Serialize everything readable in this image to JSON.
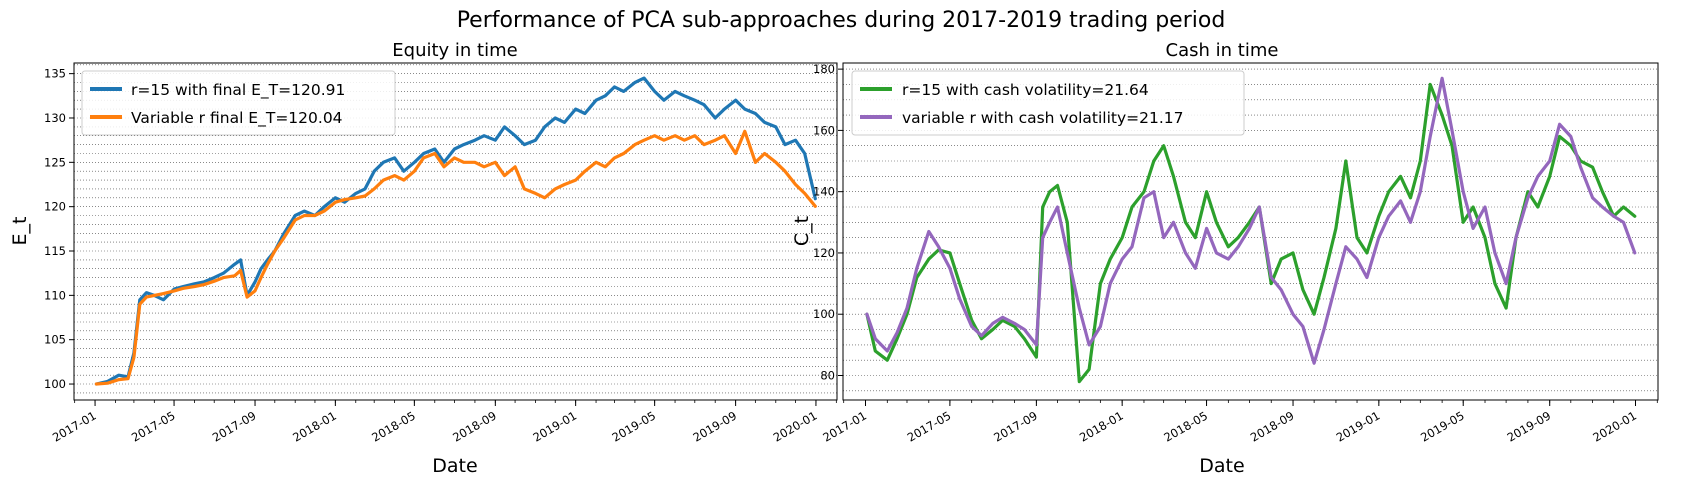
{
  "figure": {
    "title": "Performance of PCA sub-approaches during 2017-2019 trading period"
  },
  "chart_data": [
    {
      "type": "line",
      "title": "Equity in time",
      "xlabel": "Date",
      "ylabel": "E_t",
      "xlim": [
        "2016-11-30",
        "2020-02-02"
      ],
      "ylim": [
        98.2,
        136.2
      ],
      "x_ticks": [
        "2017-01",
        "2017-05",
        "2017-09",
        "2018-01",
        "2018-05",
        "2018-09",
        "2019-01",
        "2019-05",
        "2019-09",
        "2020-01"
      ],
      "y_ticks": [
        100,
        105,
        110,
        115,
        120,
        125,
        130,
        135
      ],
      "grid": "horizontal dotted, major and minor",
      "legend_position": "upper-left",
      "series": [
        {
          "name": "r=15 with final E_T=120.91",
          "color": "#1f77b4",
          "x": [
            "2017-01-03",
            "2017-01-20",
            "2017-02-06",
            "2017-02-20",
            "2017-03-01",
            "2017-03-10",
            "2017-03-20",
            "2017-04-01",
            "2017-04-15",
            "2017-05-01",
            "2017-05-15",
            "2017-06-01",
            "2017-06-15",
            "2017-07-01",
            "2017-07-15",
            "2017-08-01",
            "2017-08-10",
            "2017-08-20",
            "2017-09-01",
            "2017-09-10",
            "2017-09-20",
            "2017-10-01",
            "2017-10-15",
            "2017-11-01",
            "2017-11-15",
            "2017-12-01",
            "2017-12-15",
            "2018-01-01",
            "2018-01-15",
            "2018-02-01",
            "2018-02-15",
            "2018-03-01",
            "2018-03-15",
            "2018-04-01",
            "2018-04-15",
            "2018-05-01",
            "2018-05-15",
            "2018-06-01",
            "2018-06-15",
            "2018-07-01",
            "2018-07-15",
            "2018-08-01",
            "2018-08-15",
            "2018-09-01",
            "2018-09-15",
            "2018-10-01",
            "2018-10-15",
            "2018-11-01",
            "2018-11-15",
            "2018-12-01",
            "2018-12-15",
            "2019-01-01",
            "2019-01-15",
            "2019-02-01",
            "2019-02-15",
            "2019-03-01",
            "2019-03-15",
            "2019-04-01",
            "2019-04-15",
            "2019-05-01",
            "2019-05-15",
            "2019-06-01",
            "2019-06-15",
            "2019-07-01",
            "2019-07-15",
            "2019-08-01",
            "2019-08-15",
            "2019-09-01",
            "2019-09-15",
            "2019-10-01",
            "2019-10-15",
            "2019-11-01",
            "2019-11-15",
            "2019-12-01",
            "2019-12-15",
            "2019-12-31"
          ],
          "values": [
            100,
            100.3,
            101,
            100.8,
            103.5,
            109.5,
            110.3,
            110,
            109.5,
            110.7,
            111,
            111.3,
            111.5,
            112,
            112.5,
            113.5,
            114,
            110,
            111.5,
            113,
            114,
            115,
            117,
            119,
            119.5,
            119,
            120,
            121,
            120.5,
            121.5,
            122,
            124,
            125,
            125.5,
            124,
            125,
            126,
            126.5,
            125,
            126.5,
            127,
            127.5,
            128,
            127.5,
            129,
            128,
            127,
            127.5,
            129,
            130,
            129.5,
            131,
            130.5,
            132,
            132.5,
            133.5,
            133,
            134,
            134.5,
            133,
            132,
            133,
            132.5,
            132,
            131.5,
            130,
            131,
            132,
            131,
            130.5,
            129.5,
            129,
            127,
            127.5,
            126,
            120.9
          ]
        },
        {
          "name": "Variable r final E_T=120.04",
          "color": "#ff7f0e",
          "x": [
            "2017-01-03",
            "2017-01-20",
            "2017-02-06",
            "2017-02-20",
            "2017-03-01",
            "2017-03-10",
            "2017-03-20",
            "2017-04-01",
            "2017-04-15",
            "2017-05-01",
            "2017-05-15",
            "2017-06-01",
            "2017-06-15",
            "2017-07-01",
            "2017-07-15",
            "2017-08-01",
            "2017-08-10",
            "2017-08-20",
            "2017-09-01",
            "2017-09-10",
            "2017-09-20",
            "2017-10-01",
            "2017-10-15",
            "2017-11-01",
            "2017-11-15",
            "2017-12-01",
            "2017-12-15",
            "2018-01-01",
            "2018-01-15",
            "2018-02-01",
            "2018-02-15",
            "2018-03-01",
            "2018-03-15",
            "2018-04-01",
            "2018-04-15",
            "2018-05-01",
            "2018-05-15",
            "2018-06-01",
            "2018-06-15",
            "2018-07-01",
            "2018-07-15",
            "2018-08-01",
            "2018-08-15",
            "2018-09-01",
            "2018-09-15",
            "2018-10-01",
            "2018-10-15",
            "2018-11-01",
            "2018-11-15",
            "2018-12-01",
            "2018-12-15",
            "2019-01-01",
            "2019-01-15",
            "2019-02-01",
            "2019-02-15",
            "2019-03-01",
            "2019-03-15",
            "2019-04-01",
            "2019-04-15",
            "2019-05-01",
            "2019-05-15",
            "2019-06-01",
            "2019-06-15",
            "2019-07-01",
            "2019-07-15",
            "2019-08-01",
            "2019-08-15",
            "2019-09-01",
            "2019-09-15",
            "2019-10-01",
            "2019-10-15",
            "2019-11-01",
            "2019-11-15",
            "2019-12-01",
            "2019-12-15",
            "2019-12-31"
          ],
          "values": [
            100,
            100.1,
            100.5,
            100.6,
            103,
            109,
            109.8,
            110,
            110.2,
            110.5,
            110.8,
            111,
            111.2,
            111.6,
            112,
            112.2,
            112.8,
            109.8,
            110.5,
            112,
            113.5,
            115,
            116.5,
            118.5,
            119,
            119,
            119.5,
            120.5,
            120.8,
            121,
            121.2,
            122,
            123,
            123.5,
            123,
            124,
            125.5,
            126,
            124.5,
            125.5,
            125,
            125,
            124.5,
            125,
            123.5,
            124.5,
            122,
            121.5,
            121,
            122,
            122.5,
            123,
            124,
            125,
            124.5,
            125.5,
            126,
            127,
            127.5,
            128,
            127.5,
            128,
            127.5,
            128,
            127,
            127.5,
            128,
            126,
            128.5,
            125,
            126,
            125,
            124,
            122.5,
            121.5,
            120.04
          ]
        }
      ]
    },
    {
      "type": "line",
      "title": "Cash in time",
      "xlabel": "Date",
      "ylabel": "C_t",
      "xlim": [
        "2016-11-30",
        "2020-02-02"
      ],
      "ylim": [
        72,
        182
      ],
      "x_ticks": [
        "2017-01",
        "2017-05",
        "2017-09",
        "2018-01",
        "2018-05",
        "2018-09",
        "2019-01",
        "2019-05",
        "2019-09",
        "2020-01"
      ],
      "y_ticks": [
        80,
        100,
        120,
        140,
        160,
        180
      ],
      "grid": "horizontal dotted, major and minor",
      "legend_position": "upper-left",
      "series": [
        {
          "name": "r=15 with cash volatility=21.64",
          "color": "#2ca02c",
          "x": [
            "2017-01-03",
            "2017-01-15",
            "2017-02-01",
            "2017-02-15",
            "2017-03-01",
            "2017-03-15",
            "2017-04-01",
            "2017-04-15",
            "2017-05-01",
            "2017-05-15",
            "2017-06-01",
            "2017-06-15",
            "2017-07-01",
            "2017-07-15",
            "2017-08-01",
            "2017-08-15",
            "2017-09-01",
            "2017-09-10",
            "2017-09-20",
            "2017-10-01",
            "2017-10-15",
            "2017-11-01",
            "2017-11-15",
            "2017-12-01",
            "2017-12-15",
            "2018-01-01",
            "2018-01-15",
            "2018-02-01",
            "2018-02-15",
            "2018-03-01",
            "2018-03-15",
            "2018-04-01",
            "2018-04-15",
            "2018-05-01",
            "2018-05-15",
            "2018-06-01",
            "2018-06-15",
            "2018-07-01",
            "2018-07-15",
            "2018-08-01",
            "2018-08-15",
            "2018-09-01",
            "2018-09-15",
            "2018-10-01",
            "2018-10-15",
            "2018-11-01",
            "2018-11-15",
            "2018-12-01",
            "2018-12-15",
            "2019-01-01",
            "2019-01-15",
            "2019-02-01",
            "2019-02-15",
            "2019-03-01",
            "2019-03-15",
            "2019-04-01",
            "2019-04-15",
            "2019-05-01",
            "2019-05-15",
            "2019-06-01",
            "2019-06-15",
            "2019-07-01",
            "2019-07-15",
            "2019-08-01",
            "2019-08-15",
            "2019-09-01",
            "2019-09-15",
            "2019-10-01",
            "2019-10-15",
            "2019-11-01",
            "2019-11-15",
            "2019-12-01",
            "2019-12-15",
            "2019-12-31"
          ],
          "values": [
            100,
            88,
            85,
            92,
            100,
            112,
            118,
            121,
            120,
            110,
            98,
            92,
            95,
            98,
            96,
            92,
            86,
            135,
            140,
            142,
            130,
            78,
            82,
            110,
            118,
            125,
            135,
            140,
            150,
            155,
            145,
            130,
            125,
            140,
            130,
            122,
            125,
            130,
            135,
            110,
            118,
            120,
            108,
            100,
            112,
            128,
            150,
            125,
            120,
            132,
            140,
            145,
            138,
            150,
            175,
            165,
            155,
            130,
            135,
            125,
            110,
            102,
            125,
            140,
            135,
            145,
            158,
            155,
            150,
            148,
            140,
            132,
            135,
            132
          ]
        },
        {
          "name": "variable r with cash volatility=21.17",
          "color": "#9467bd",
          "x": [
            "2017-01-03",
            "2017-01-15",
            "2017-02-01",
            "2017-02-15",
            "2017-03-01",
            "2017-03-15",
            "2017-04-01",
            "2017-04-15",
            "2017-05-01",
            "2017-05-15",
            "2017-06-01",
            "2017-06-15",
            "2017-07-01",
            "2017-07-15",
            "2017-08-01",
            "2017-08-15",
            "2017-09-01",
            "2017-09-10",
            "2017-09-20",
            "2017-10-01",
            "2017-10-15",
            "2017-11-01",
            "2017-11-15",
            "2017-12-01",
            "2017-12-15",
            "2018-01-01",
            "2018-01-15",
            "2018-02-01",
            "2018-02-15",
            "2018-03-01",
            "2018-03-15",
            "2018-04-01",
            "2018-04-15",
            "2018-05-01",
            "2018-05-15",
            "2018-06-01",
            "2018-06-15",
            "2018-07-01",
            "2018-07-15",
            "2018-08-01",
            "2018-08-15",
            "2018-09-01",
            "2018-09-15",
            "2018-10-01",
            "2018-10-15",
            "2018-11-01",
            "2018-11-15",
            "2018-12-01",
            "2018-12-15",
            "2019-01-01",
            "2019-01-15",
            "2019-02-01",
            "2019-02-15",
            "2019-03-01",
            "2019-03-15",
            "2019-04-01",
            "2019-04-15",
            "2019-05-01",
            "2019-05-15",
            "2019-06-01",
            "2019-06-15",
            "2019-07-01",
            "2019-07-15",
            "2019-08-01",
            "2019-08-15",
            "2019-09-01",
            "2019-09-15",
            "2019-10-01",
            "2019-10-15",
            "2019-11-01",
            "2019-11-15",
            "2019-12-01",
            "2019-12-15",
            "2019-12-31"
          ],
          "values": [
            100,
            92,
            88,
            94,
            102,
            115,
            127,
            122,
            115,
            105,
            96,
            93,
            97,
            99,
            97,
            95,
            90,
            125,
            130,
            135,
            120,
            102,
            90,
            96,
            110,
            118,
            122,
            138,
            140,
            125,
            130,
            120,
            115,
            128,
            120,
            118,
            122,
            128,
            135,
            112,
            108,
            100,
            96,
            84,
            95,
            110,
            122,
            118,
            112,
            125,
            132,
            137,
            130,
            140,
            158,
            177,
            160,
            140,
            128,
            135,
            120,
            110,
            125,
            138,
            145,
            150,
            162,
            158,
            148,
            138,
            135,
            132,
            130,
            120
          ]
        }
      ]
    }
  ]
}
